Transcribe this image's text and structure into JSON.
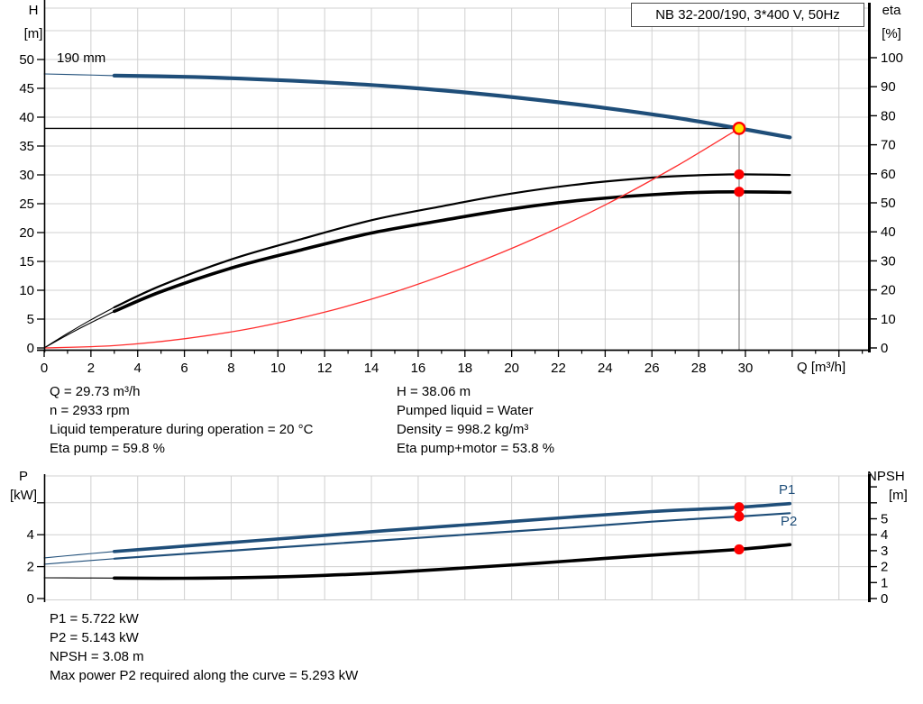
{
  "colors": {
    "curve_blue": "#1f4e79",
    "curve_black": "#000000",
    "system_red": "#ff2f2f",
    "grid": "#d0d0d0",
    "duty_line": "#8c8c8c",
    "marker_red": "#ff0000",
    "marker_yellow": "#ffe600",
    "axis": "#000000"
  },
  "labels": {
    "title_box": "NB 32-200/190, 3*400 V, 50Hz",
    "h": "H",
    "h_unit": "[m]",
    "eta": "eta",
    "eta_unit": "[%]",
    "q": "Q [m³/h]",
    "curve": "190 mm",
    "p": "P",
    "p_unit": "[kW]",
    "npsh": "NPSH",
    "npsh_unit": "[m]",
    "p1": "P1",
    "p2": "P2"
  },
  "info_top": {
    "left": [
      "Q = 29.73 m³/h",
      "n = 2933 rpm",
      "Liquid temperature during operation = 20 °C",
      "Eta pump = 59.8 %"
    ],
    "right": [
      "H = 38.06 m",
      "Pumped liquid = Water",
      "Density = 998.2 kg/m³",
      "Eta pump+motor = 53.8 %"
    ]
  },
  "info_bottom": [
    "P1 = 5.722 kW",
    "P2 = 5.143 kW",
    "NPSH = 3.08 m",
    "Max power P2 required along the curve = 5.293 kW"
  ],
  "chart_data": [
    {
      "id": "top",
      "type": "line",
      "title": "NB 32-200/190, 3*400 V, 50Hz",
      "xlabel": "Q [m³/h]",
      "ylabel_left": "H [m]",
      "ylabel_right": "eta [%]",
      "x_axis": {
        "min": 0,
        "max": 35.25,
        "major_ticks": [
          0,
          2,
          4,
          6,
          8,
          10,
          12,
          14,
          16,
          18,
          20,
          22,
          24,
          26,
          28,
          30,
          32,
          34
        ],
        "minor_ticks": [
          1,
          3,
          5,
          7,
          9,
          11,
          13,
          15,
          17,
          19,
          21,
          23,
          25,
          27,
          29,
          31,
          33,
          35
        ],
        "labeled_ticks": [
          0,
          2,
          4,
          6,
          8,
          10,
          12,
          14,
          16,
          18,
          20,
          22,
          24,
          26,
          28,
          30
        ]
      },
      "y_left": {
        "min": 0,
        "max": 59,
        "ticks": [
          0,
          5,
          10,
          15,
          20,
          25,
          30,
          35,
          40,
          45,
          50
        ],
        "labeled_ticks": [
          0,
          5,
          10,
          15,
          20,
          25,
          30,
          35,
          40,
          45,
          50
        ]
      },
      "y_right": {
        "min": 0,
        "max": 117,
        "ticks": [
          0,
          10,
          20,
          30,
          40,
          50,
          60,
          70,
          80,
          90,
          100
        ],
        "labeled_ticks": [
          0,
          10,
          20,
          30,
          40,
          50,
          60,
          70,
          80,
          90,
          100
        ]
      },
      "grid_x": [
        2,
        4,
        6,
        8,
        10,
        12,
        14,
        16,
        18,
        20,
        22,
        24,
        26,
        28,
        30,
        32,
        34
      ],
      "grid_y_left": [
        5,
        10,
        15,
        20,
        25,
        30,
        35,
        40,
        45,
        50,
        55
      ],
      "duty_point": {
        "Q": 29.73,
        "H": 38.06,
        "eta_pump": 59.8,
        "eta_pump_motor": 53.8
      },
      "duty_lines": {
        "h_line": {
          "value": 38.06,
          "from_q": 0,
          "to_q": 29.73
        },
        "v_line": {
          "q": 29.73,
          "from_value": 38.06,
          "to_value": 0
        }
      },
      "series": [
        {
          "name": "head-curve",
          "label": "190 mm",
          "color": "#1f4e79",
          "axis": "left",
          "segments": [
            {
              "width": 1.1,
              "points": [
                [
                  0,
                  47.5
                ],
                [
                  1.5,
                  47.36
                ],
                [
                  3,
                  47.2
                ]
              ]
            },
            {
              "width": 4.2,
              "points": [
                [
                  3,
                  47.2
                ],
                [
                  6,
                  47.0
                ],
                [
                  9,
                  46.6
                ],
                [
                  12,
                  46.05
                ],
                [
                  15,
                  45.3
                ],
                [
                  18,
                  44.3
                ],
                [
                  21,
                  43.05
                ],
                [
                  24,
                  41.6
                ],
                [
                  27,
                  39.9
                ],
                [
                  29.73,
                  38.06
                ],
                [
                  31.9,
                  36.5
                ]
              ]
            }
          ]
        },
        {
          "name": "eta-pump-curve",
          "label": "Eta pump",
          "color": "#000000",
          "axis": "right",
          "segments": [
            {
              "width": 1.1,
              "points": [
                [
                  0,
                  0
                ],
                [
                  1,
                  5
                ],
                [
                  2,
                  9.7
                ],
                [
                  3,
                  14
                ]
              ]
            },
            {
              "width": 2.2,
              "points": [
                [
                  3,
                  14
                ],
                [
                  5,
                  21.5
                ],
                [
                  8,
                  30.5
                ],
                [
                  11,
                  37.5
                ],
                [
                  14,
                  44
                ],
                [
                  17,
                  48.8
                ],
                [
                  20,
                  53.2
                ],
                [
                  23,
                  56.5
                ],
                [
                  26,
                  58.7
                ],
                [
                  28,
                  59.5
                ],
                [
                  29.73,
                  59.8
                ],
                [
                  31.9,
                  59.6
                ]
              ]
            }
          ]
        },
        {
          "name": "eta-pump-motor-curve",
          "label": "Eta pump+motor",
          "color": "#000000",
          "axis": "right",
          "segments": [
            {
              "width": 1.1,
              "points": [
                [
                  0,
                  0
                ],
                [
                  1,
                  4.5
                ],
                [
                  2,
                  8.7
                ],
                [
                  3,
                  12.6
                ]
              ]
            },
            {
              "width": 3.6,
              "points": [
                [
                  3,
                  12.6
                ],
                [
                  5,
                  19.4
                ],
                [
                  8,
                  27.5
                ],
                [
                  11,
                  33.8
                ],
                [
                  14,
                  39.6
                ],
                [
                  17,
                  43.9
                ],
                [
                  20,
                  47.9
                ],
                [
                  23,
                  50.9
                ],
                [
                  26,
                  52.8
                ],
                [
                  28,
                  53.6
                ],
                [
                  29.73,
                  53.8
                ],
                [
                  31.9,
                  53.6
                ]
              ]
            }
          ]
        },
        {
          "name": "system-curve",
          "label": "",
          "color": "#ff2f2f",
          "axis": "left",
          "segments": [
            {
              "width": 1.3,
              "points": [
                [
                  0,
                  0
                ],
                [
                  3,
                  0.4
                ],
                [
                  6,
                  1.6
                ],
                [
                  9,
                  3.5
                ],
                [
                  12,
                  6.2
                ],
                [
                  15,
                  9.7
                ],
                [
                  18,
                  14.0
                ],
                [
                  21,
                  19.0
                ],
                [
                  24,
                  24.8
                ],
                [
                  27,
                  31.4
                ],
                [
                  29.73,
                  38.06
                ]
              ]
            }
          ]
        }
      ],
      "markers": [
        {
          "name": "duty-point",
          "q": 29.73,
          "value": 38.06,
          "axis": "left",
          "style": "duty"
        },
        {
          "name": "eta-pump-point",
          "q": 29.73,
          "value": 59.8,
          "axis": "right",
          "style": "red"
        },
        {
          "name": "eta-pump-motor-point",
          "q": 29.73,
          "value": 53.8,
          "axis": "right",
          "style": "red"
        }
      ]
    },
    {
      "id": "bot",
      "type": "line",
      "title": "",
      "xlabel": "",
      "ylabel_left": "P [kW]",
      "ylabel_right": "NPSH [m]",
      "x_axis": {
        "min": 0,
        "max": 35.25,
        "major_ticks": [],
        "minor_ticks": [],
        "labeled_ticks": []
      },
      "y_left": {
        "min": 0,
        "max": 7.7,
        "ticks": [
          0,
          2,
          4,
          6
        ],
        "labeled_ticks": [
          0,
          2,
          4
        ]
      },
      "y_right": {
        "min": 0,
        "max": 7.7,
        "ticks": [
          0,
          1,
          2,
          3,
          4,
          5,
          6,
          7
        ],
        "labeled_ticks": [
          0,
          1,
          2,
          3,
          4,
          5
        ]
      },
      "grid_x": [
        2,
        4,
        6,
        8,
        10,
        12,
        14,
        16,
        18,
        20,
        22,
        24,
        26,
        28,
        30,
        32,
        34
      ],
      "grid_y_left": [
        2,
        4,
        6
      ],
      "duty_point": {
        "Q": 29.73,
        "P1": 5.722,
        "P2": 5.143,
        "NPSH": 3.08
      },
      "series": [
        {
          "name": "p1-curve",
          "label": "P1",
          "color": "#1f4e79",
          "axis": "left",
          "segments": [
            {
              "width": 1.1,
              "points": [
                [
                  0,
                  2.55
                ],
                [
                  1.5,
                  2.75
                ],
                [
                  3,
                  2.95
                ]
              ]
            },
            {
              "width": 3.6,
              "points": [
                [
                  3,
                  2.95
                ],
                [
                  7,
                  3.4
                ],
                [
                  11,
                  3.85
                ],
                [
                  15,
                  4.3
                ],
                [
                  19,
                  4.72
                ],
                [
                  23,
                  5.15
                ],
                [
                  26,
                  5.45
                ],
                [
                  28,
                  5.6
                ],
                [
                  29.73,
                  5.722
                ],
                [
                  31.9,
                  5.95
                ]
              ]
            }
          ]
        },
        {
          "name": "p2-curve",
          "label": "P2",
          "color": "#1f4e79",
          "axis": "left",
          "segments": [
            {
              "width": 1.1,
              "points": [
                [
                  0,
                  2.15
                ],
                [
                  1.5,
                  2.33
                ],
                [
                  3,
                  2.5
                ]
              ]
            },
            {
              "width": 2.2,
              "points": [
                [
                  3,
                  2.5
                ],
                [
                  7,
                  2.9
                ],
                [
                  11,
                  3.3
                ],
                [
                  15,
                  3.7
                ],
                [
                  19,
                  4.1
                ],
                [
                  23,
                  4.5
                ],
                [
                  26,
                  4.82
                ],
                [
                  28,
                  5.0
                ],
                [
                  29.73,
                  5.143
                ],
                [
                  31.9,
                  5.35
                ]
              ]
            }
          ]
        },
        {
          "name": "npsh-curve",
          "label": "NPSH",
          "color": "#000000",
          "axis": "right",
          "segments": [
            {
              "width": 1.1,
              "points": [
                [
                  0,
                  1.3
                ],
                [
                  1.5,
                  1.29
                ],
                [
                  3,
                  1.28
                ]
              ]
            },
            {
              "width": 3.6,
              "points": [
                [
                  3,
                  1.28
                ],
                [
                  6,
                  1.27
                ],
                [
                  9,
                  1.32
                ],
                [
                  12,
                  1.45
                ],
                [
                  15,
                  1.65
                ],
                [
                  18,
                  1.92
                ],
                [
                  21,
                  2.2
                ],
                [
                  24,
                  2.52
                ],
                [
                  27,
                  2.82
                ],
                [
                  29.73,
                  3.08
                ],
                [
                  31.9,
                  3.38
                ]
              ]
            }
          ]
        }
      ],
      "markers": [
        {
          "name": "p1-point",
          "q": 29.73,
          "value": 5.722,
          "axis": "left",
          "style": "red"
        },
        {
          "name": "p2-point",
          "q": 29.73,
          "value": 5.143,
          "axis": "left",
          "style": "red"
        },
        {
          "name": "npsh-point",
          "q": 29.73,
          "value": 3.08,
          "axis": "right",
          "style": "red"
        }
      ]
    }
  ]
}
